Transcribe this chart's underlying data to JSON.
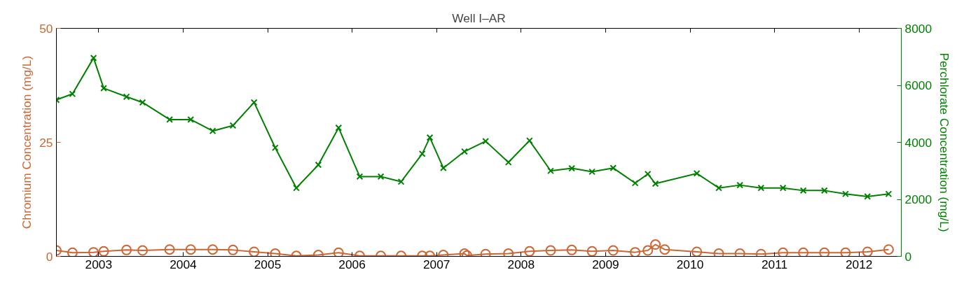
{
  "chart_data": {
    "type": "line",
    "title": "Well I–AR",
    "ylabel": "Chromium Concentration (mg/L)",
    "y2label": "Perchlorate Concentration (mg/L)",
    "xlim": [
      2002.5,
      2012.5
    ],
    "xticks": [
      2003,
      2004,
      2005,
      2006,
      2007,
      2008,
      2009,
      2010,
      2011,
      2012
    ],
    "ylim": [
      0,
      50
    ],
    "yticks": [
      0,
      25,
      50
    ],
    "y2lim": [
      0,
      8000
    ],
    "y2ticks": [
      0,
      2000,
      4000,
      6000,
      8000
    ],
    "grid": false,
    "line_style": "solid",
    "series": [
      {
        "color": "#cc6633",
        "marker": "circle",
        "x": [
          2002.5,
          2002.69,
          2002.94,
          2003.06,
          2003.33,
          2003.52,
          2003.84,
          2004.09,
          2004.35,
          2004.59,
          2004.84,
          2005.09,
          2005.34,
          2005.6,
          2005.84,
          2006.09,
          2006.34,
          2006.58,
          2006.83,
          2006.92,
          2007.08,
          2007.33,
          2007.36,
          2007.58,
          2007.85,
          2008.1,
          2008.35,
          2008.6,
          2008.84,
          2009.09,
          2009.35,
          2009.5,
          2009.59,
          2009.7,
          2010.08,
          2010.34,
          2010.59,
          2010.84,
          2011.1,
          2011.34,
          2011.59,
          2011.84,
          2012.1,
          2012.35
        ],
        "values": [
          1.3,
          0.8,
          0.9,
          1.1,
          1.4,
          1.3,
          1.5,
          1.5,
          1.5,
          1.4,
          1.0,
          0.6,
          0.1,
          0.3,
          0.8,
          0.1,
          0.1,
          0.1,
          0.1,
          0.1,
          0.3,
          0.6,
          0.2,
          0.5,
          0.6,
          1.1,
          1.3,
          1.4,
          1.1,
          1.3,
          0.9,
          1.3,
          2.6,
          1.5,
          1.0,
          0.6,
          0.6,
          0.5,
          0.8,
          0.8,
          0.8,
          0.8,
          1.0,
          1.5
        ]
      },
      {
        "color": "#008000",
        "marker": "cross",
        "axis": "y2",
        "x": [
          2002.5,
          2002.69,
          2002.94,
          2003.06,
          2003.33,
          2003.52,
          2003.84,
          2004.09,
          2004.35,
          2004.59,
          2004.84,
          2005.09,
          2005.34,
          2005.6,
          2005.84,
          2006.09,
          2006.34,
          2006.58,
          2006.83,
          2006.92,
          2007.08,
          2007.33,
          2007.58,
          2007.85,
          2008.1,
          2008.35,
          2008.6,
          2008.84,
          2009.09,
          2009.35,
          2009.5,
          2009.59,
          2010.08,
          2010.34,
          2010.59,
          2010.84,
          2011.1,
          2011.34,
          2011.59,
          2011.84,
          2012.1,
          2012.35
        ],
        "values": [
          5490,
          5700,
          6960,
          5900,
          5600,
          5400,
          4800,
          4800,
          4400,
          4590,
          5400,
          3810,
          2400,
          3210,
          4510,
          2800,
          2800,
          2620,
          3600,
          4170,
          3100,
          3680,
          4040,
          3300,
          4060,
          3000,
          3090,
          2970,
          3100,
          2570,
          2890,
          2550,
          2910,
          2400,
          2500,
          2400,
          2400,
          2310,
          2310,
          2190,
          2100,
          2190
        ]
      }
    ]
  }
}
